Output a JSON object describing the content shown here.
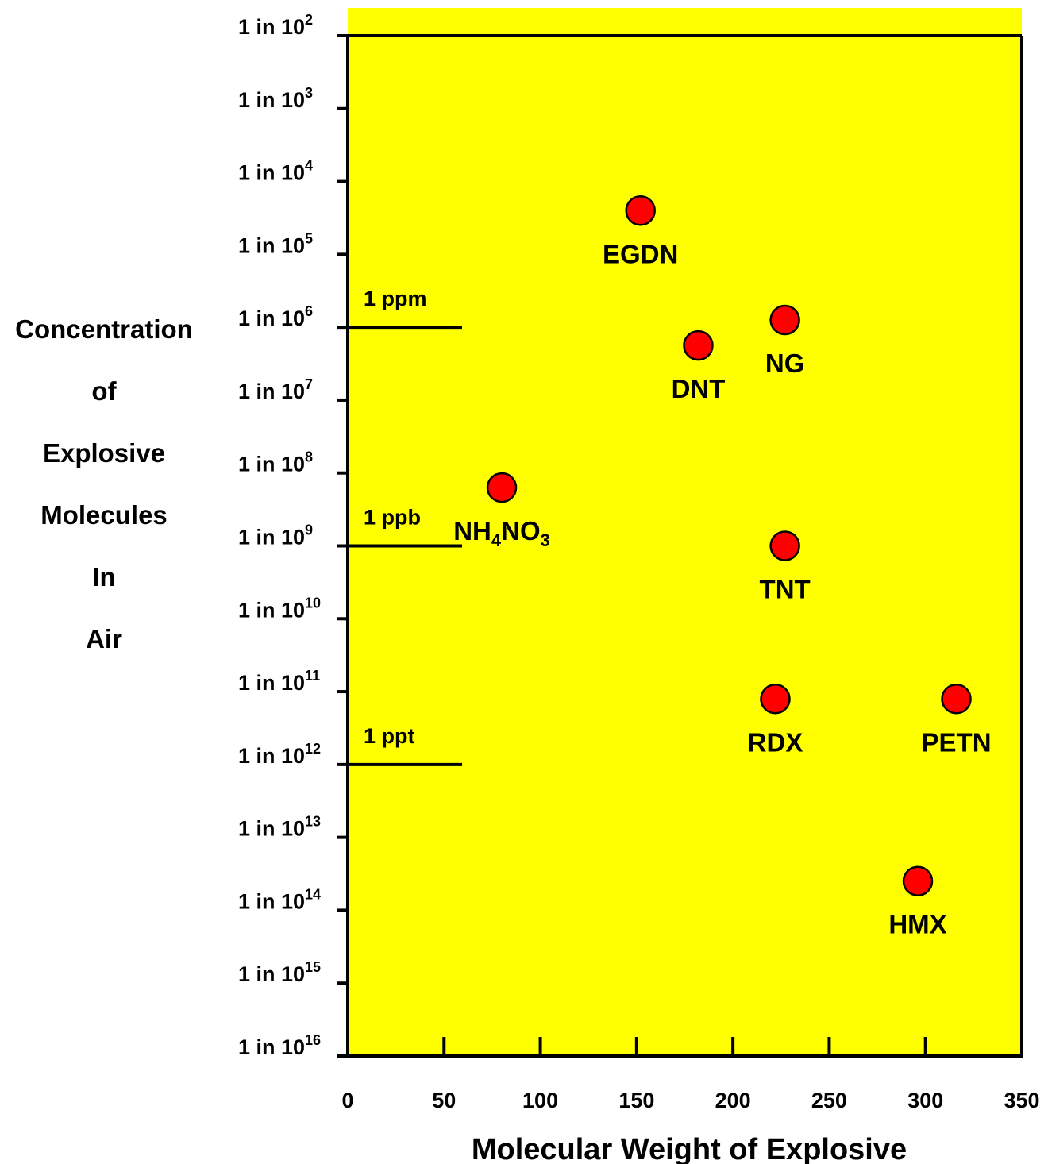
{
  "chart_data": {
    "type": "scatter",
    "xlabel": "Molecular Weight of Explosive",
    "ylabel_lines": [
      "Concentration",
      "of",
      "Explosive",
      "Molecules",
      "In",
      "Air"
    ],
    "xlim": [
      0,
      350
    ],
    "x_ticks": [
      "0",
      "50",
      "100",
      "150",
      "200",
      "250",
      "300",
      "350"
    ],
    "y_scale": "log (1 in 10^n)",
    "y_exponent_range": [
      2,
      16
    ],
    "y_tick_prefix": "1 in 10",
    "y_ticks": [
      "2",
      "3",
      "4",
      "5",
      "6",
      "7",
      "8",
      "9",
      "10",
      "11",
      "12",
      "13",
      "14",
      "15",
      "16"
    ],
    "reference_lines": [
      {
        "label": "1 ppm",
        "exponent": 6
      },
      {
        "label": "1 ppb",
        "exponent": 9
      },
      {
        "label": "1 ppt",
        "exponent": 12
      }
    ],
    "points": [
      {
        "label": "EGDN",
        "x": 152,
        "exponent": 4.4
      },
      {
        "label": "NG",
        "x": 227,
        "exponent": 5.9
      },
      {
        "label": "DNT",
        "x": 182,
        "exponent": 6.25
      },
      {
        "label_main": "NH",
        "label_sub1": "4",
        "label_mid": "NO",
        "label_sub2": "3",
        "x": 80,
        "exponent": 8.2
      },
      {
        "label": "TNT",
        "x": 227,
        "exponent": 9.0
      },
      {
        "label": "RDX",
        "x": 222,
        "exponent": 11.1
      },
      {
        "label": "PETN",
        "x": 316,
        "exponent": 11.1
      },
      {
        "label": "HMX",
        "x": 296,
        "exponent": 13.6
      }
    ],
    "colors": {
      "background": "#ffff00",
      "point": "#ff0000",
      "axis": "#000000"
    }
  }
}
